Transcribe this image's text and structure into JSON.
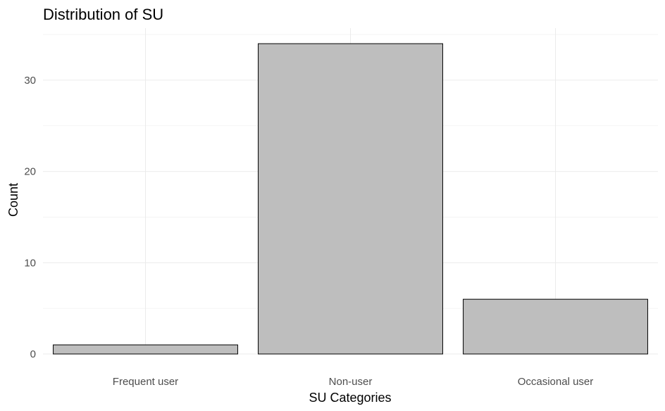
{
  "chart_data": {
    "type": "bar",
    "title": "Distribution of SU",
    "xlabel": "SU Categories",
    "ylabel": "Count",
    "categories": [
      "Frequent user",
      "Non-user",
      "Occasional user"
    ],
    "values": [
      1,
      34,
      6
    ],
    "ylim": [
      0,
      35.7
    ],
    "yticks": [
      0,
      10,
      20,
      30
    ],
    "grid": true,
    "colors": {
      "bar_fill": "#bebebe",
      "bar_stroke": "#000000"
    }
  }
}
